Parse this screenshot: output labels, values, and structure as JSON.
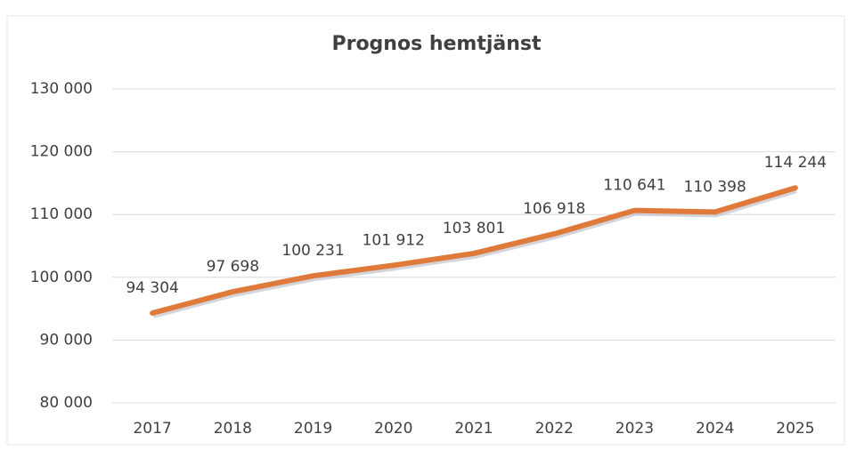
{
  "chart_data": {
    "type": "line",
    "title": "Prognos hemtjänst",
    "categories": [
      "2017",
      "2018",
      "2019",
      "2020",
      "2021",
      "2022",
      "2023",
      "2024",
      "2025"
    ],
    "values": [
      94304,
      97698,
      100231,
      101912,
      103801,
      106918,
      110641,
      110398,
      114244
    ],
    "value_labels": [
      "94 304",
      "97 698",
      "100 231",
      "101 912",
      "103 801",
      "106 918",
      "110 641",
      "110 398",
      "114 244"
    ],
    "color": "#e07a3a",
    "ylim": [
      80000,
      130000
    ],
    "yticks": [
      {
        "value": 80000,
        "label": "80 000"
      },
      {
        "value": 90000,
        "label": "90 000"
      },
      {
        "value": 100000,
        "label": "100 000"
      },
      {
        "value": 110000,
        "label": "110 000"
      },
      {
        "value": 120000,
        "label": "120 000"
      },
      {
        "value": 130000,
        "label": "130 000"
      }
    ],
    "grid": true
  }
}
